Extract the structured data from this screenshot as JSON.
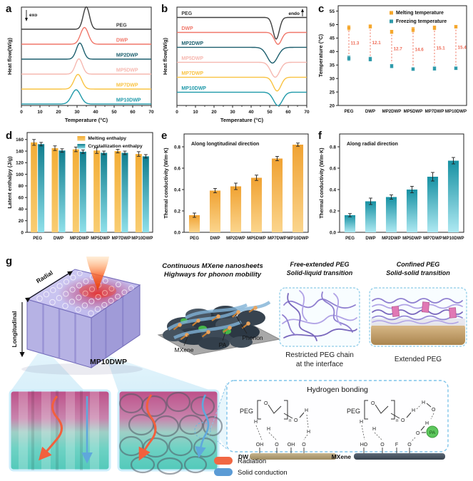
{
  "panel_letters": {
    "a": "a",
    "b": "b",
    "c": "c",
    "d": "d",
    "e": "e",
    "f": "f",
    "g": "g"
  },
  "chart_data": [
    {
      "id": "a",
      "type": "dsc",
      "direction": "up",
      "label_side": "right",
      "annotation": "exo",
      "annotation_side": "left",
      "xlabel": "Temperature (°C)",
      "ylabel": "Heat flow(W/g)",
      "x_max": 70,
      "x_ticks": [
        0,
        10,
        20,
        30,
        40,
        50,
        60,
        70
      ],
      "base_start": 0.225,
      "base_step": 0.152,
      "series": [
        {
          "name": "PEG",
          "color": "#3f3f3f",
          "peak": 35,
          "sigma": 1.7,
          "amp": 1.5
        },
        {
          "name": "DWP",
          "color": "#f0776a",
          "peak": 34,
          "sigma": 2.1,
          "amp": 1.12
        },
        {
          "name": "MP2DWP",
          "color": "#1d5f6e",
          "peak": 31.5,
          "sigma": 1.9,
          "amp": 1.08
        },
        {
          "name": "MP5DWP",
          "color": "#f6b8b0",
          "peak": 31,
          "sigma": 1.9,
          "amp": 1.02
        },
        {
          "name": "MP7DWP",
          "color": "#f9c342",
          "peak": 30.5,
          "sigma": 2.1,
          "amp": 0.98
        },
        {
          "name": "MP10DWP",
          "color": "#1f99a9",
          "peak": 29.5,
          "sigma": 2.4,
          "amp": 0.95
        }
      ]
    },
    {
      "id": "b",
      "type": "dsc",
      "direction": "down",
      "label_side": "left",
      "annotation": "endo",
      "annotation_side": "right",
      "xlabel": "Temperature (°C)",
      "ylabel": "Heat flow(W/g)",
      "x_max": 70,
      "x_ticks": [
        0,
        10,
        20,
        30,
        40,
        50,
        60,
        70
      ],
      "base_start": 0.105,
      "base_step": 0.152,
      "series": [
        {
          "name": "PEG",
          "color": "#3f3f3f",
          "peak": 53.5,
          "sigma": 1.7,
          "amp": 1.45
        },
        {
          "name": "DWP",
          "color": "#f0776a",
          "peak": 54.5,
          "sigma": 1.9,
          "amp": 0.8
        },
        {
          "name": "MP2DWP",
          "color": "#1d5f6e",
          "peak": 51.5,
          "sigma": 2.8,
          "amp": 1.05
        },
        {
          "name": "MP5DWP",
          "color": "#f6b8b0",
          "peak": 53,
          "sigma": 2.4,
          "amp": 1.0
        },
        {
          "name": "MP7DWP",
          "color": "#f9c342",
          "peak": 54,
          "sigma": 2.1,
          "amp": 0.92
        },
        {
          "name": "MP10DWP",
          "color": "#1f99a9",
          "peak": 54.5,
          "sigma": 2.4,
          "amp": 0.9
        }
      ]
    },
    {
      "id": "c",
      "type": "scatter",
      "ylabel": "Temperature (°C)",
      "ylim": [
        20,
        57
      ],
      "yticks": [
        20,
        25,
        30,
        35,
        40,
        45,
        50,
        55
      ],
      "categories": [
        "PEG",
        "DWP",
        "MP2DWP",
        "MP5DWP",
        "MP7DWP",
        "MP10DWP"
      ],
      "series": [
        {
          "name": "Melting temperature",
          "color": "#f5a72c",
          "values": [
            48.8,
            49.3,
            47.3,
            48.1,
            48.8,
            49.2
          ],
          "errors": [
            0.8,
            0.6,
            0.6,
            0.8,
            0.7,
            0.5
          ]
        },
        {
          "name": "Freezing temperature",
          "color": "#2e9aaa",
          "values": [
            37.5,
            37.2,
            34.6,
            33.5,
            33.7,
            33.8
          ],
          "errors": [
            0.8,
            0.7,
            0.6,
            0.5,
            0.6,
            0.5
          ]
        }
      ],
      "delta_labels": [
        "11.3",
        "12.1",
        "12.7",
        "14.6",
        "15.1",
        "15.4"
      ],
      "delta_color": "#ee6a55"
    },
    {
      "id": "d",
      "type": "grouped_bar",
      "ylabel": "Latent enthalpy (J/g)",
      "ylim": [
        0,
        172
      ],
      "yticks": [
        0,
        20,
        40,
        60,
        80,
        100,
        120,
        140,
        160
      ],
      "categories": [
        "PEG",
        "DWP",
        "MP2DWP",
        "MP5DWP",
        "MP7DWP",
        "MP10DWP"
      ],
      "series": [
        {
          "name": "Melting enthalpy",
          "color_top": "#f3ad36",
          "color_bottom": "#f9cd72",
          "values": [
            155,
            145,
            143,
            141,
            140,
            135
          ],
          "errors": [
            5,
            4,
            4,
            5,
            3,
            4
          ]
        },
        {
          "name": "Crystallization enthalpy",
          "color_top": "#0f7d8e",
          "color_bottom": "#8fe0ea",
          "values": [
            152,
            141,
            139,
            137,
            137,
            131
          ],
          "errors": [
            3,
            3,
            3,
            3,
            3,
            3
          ]
        }
      ]
    },
    {
      "id": "e",
      "type": "bar",
      "annotation": "Along longtitudinal direction",
      "ylabel": "Thermal conductivity (W/m·K)",
      "ylim": [
        0,
        0.92
      ],
      "yticks": [
        0,
        0.2,
        0.4,
        0.6,
        0.8
      ],
      "ytick_format": "1f",
      "categories": [
        "PEG",
        "DWP",
        "MP2DWP",
        "MP5DWP",
        "MP7DWP",
        "MP10DWP"
      ],
      "color_top": "#f0a232",
      "color_bottom": "#fbd58d",
      "values": [
        0.16,
        0.39,
        0.43,
        0.51,
        0.69,
        0.82
      ],
      "errors": [
        0.02,
        0.02,
        0.03,
        0.025,
        0.02,
        0.015
      ]
    },
    {
      "id": "f",
      "type": "bar",
      "annotation": "Along radial direction",
      "ylabel": "Thermal conductivity (W/m·K)",
      "ylim": [
        0,
        0.92
      ],
      "yticks": [
        0,
        0.2,
        0.4,
        0.6,
        0.8
      ],
      "ytick_format": "1f",
      "categories": [
        "PEG",
        "DWP",
        "MP2DWP",
        "MP5DWP",
        "MP7DWP",
        "MP10DWP"
      ],
      "color_top": "#1791a3",
      "color_bottom": "#aee9f2",
      "values": [
        0.16,
        0.29,
        0.33,
        0.4,
        0.52,
        0.67
      ],
      "errors": [
        0.015,
        0.03,
        0.02,
        0.03,
        0.04,
        0.03
      ]
    }
  ],
  "schematic": {
    "letter": "g",
    "cube": {
      "radial_label": "Radial",
      "longitudinal_label": "Longitudinal",
      "sample_label": "MP10DWP"
    },
    "mxene_panel": {
      "title_line1": "Continuous MXene nanosheets",
      "title_line2": "Highways for phonon mobility",
      "mxene_label": "MXene",
      "pa_label": "PA",
      "phonon_label": "Phonon"
    },
    "free_peg_panel": {
      "title_line1": "Free-extended PEG",
      "title_line2": "Solid-liquid transition",
      "caption_line1": "Restricted PEG chain",
      "caption_line2": "at the interface"
    },
    "confined_peg_panel": {
      "title_line1": "Confined PEG",
      "title_line2": "Solid-solid transition",
      "caption": "Extended PEG"
    },
    "hbond_panel": {
      "title": "Hydrogen bonding",
      "left_polymer_label": "PEG",
      "right_polymer_label": "PEG",
      "left_substrate_label": "DW",
      "right_substrate_label": "MXene",
      "pa_label": "PA",
      "repeat_label": "n",
      "h_label": "H",
      "o_label": "O",
      "left_atoms": [
        "OH",
        "O",
        "OH",
        "O"
      ],
      "right_atoms": [
        "HO",
        "O",
        "F",
        "O"
      ]
    },
    "legend": {
      "radiation": {
        "label": "Radiation",
        "color": "#f16743"
      },
      "solid_conduction": {
        "label": "Solid conduction",
        "color": "#5b9bd5"
      }
    }
  }
}
